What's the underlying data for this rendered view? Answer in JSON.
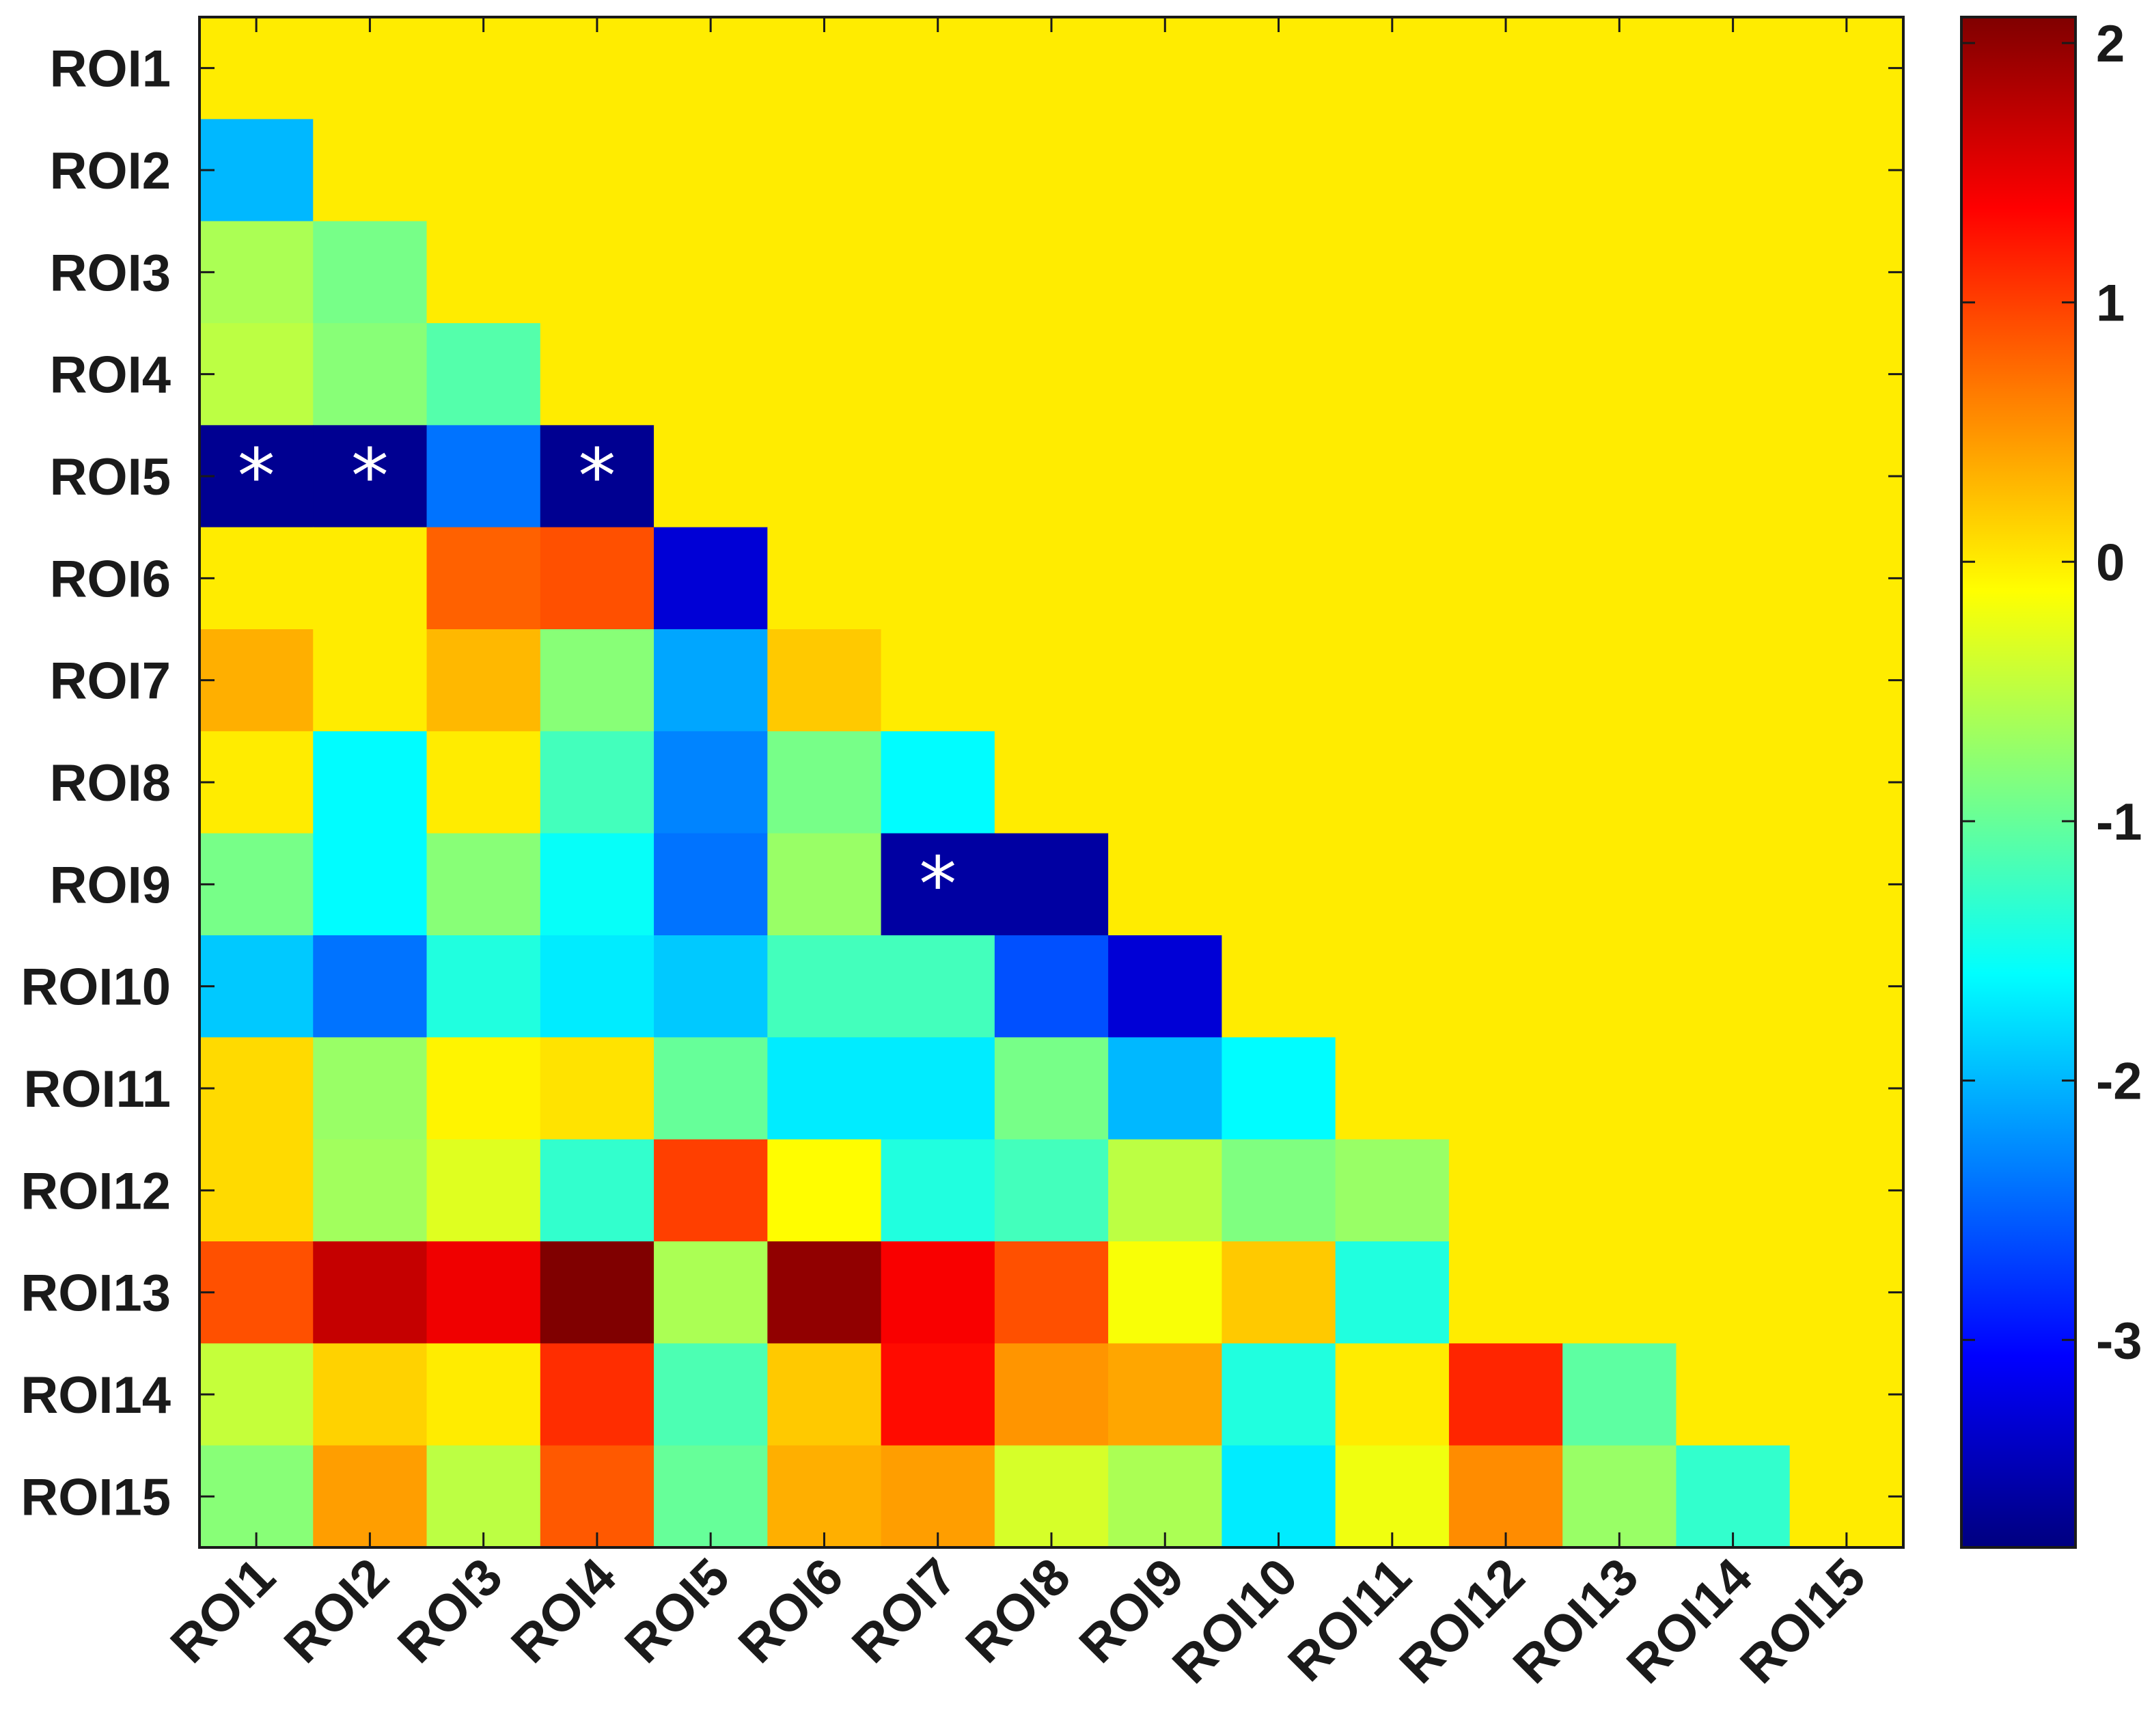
{
  "chart_data": {
    "type": "heatmap",
    "title": "",
    "xlabel": "",
    "ylabel": "",
    "x_categories": [
      "ROI1",
      "ROI2",
      "ROI3",
      "ROI4",
      "ROI5",
      "ROI6",
      "ROI7",
      "ROI8",
      "ROI9",
      "ROI10",
      "ROI11",
      "ROI12",
      "ROI13",
      "ROI14",
      "ROI15"
    ],
    "y_categories": [
      "ROI1",
      "ROI2",
      "ROI3",
      "ROI4",
      "ROI5",
      "ROI6",
      "ROI7",
      "ROI8",
      "ROI9",
      "ROI10",
      "ROI11",
      "ROI12",
      "ROI13",
      "ROI14",
      "ROI15"
    ],
    "values": [
      [
        0,
        0,
        0,
        0,
        0,
        0,
        0,
        0,
        0,
        0,
        0,
        0,
        0,
        0,
        0
      ],
      [
        -2.0,
        0,
        0,
        0,
        0,
        0,
        0,
        0,
        0,
        0,
        0,
        0,
        0,
        0,
        0
      ],
      [
        -0.6,
        -0.9,
        0,
        0,
        0,
        0,
        0,
        0,
        0,
        0,
        0,
        0,
        0,
        0,
        0
      ],
      [
        -0.5,
        -0.8,
        -1.1,
        0,
        0,
        0,
        0,
        0,
        0,
        0,
        0,
        0,
        0,
        0,
        0
      ],
      [
        -3.7,
        -3.7,
        -2.4,
        -3.7,
        0,
        0,
        0,
        0,
        0,
        0,
        0,
        0,
        0,
        0,
        0
      ],
      [
        0,
        0,
        0.8,
        0.9,
        -3.3,
        0,
        0,
        0,
        0,
        0,
        0,
        0,
        0,
        0,
        0
      ],
      [
        0.35,
        0,
        0.3,
        -0.8,
        -2.1,
        0.2,
        0,
        0,
        0,
        0,
        0,
        0,
        0,
        0,
        0
      ],
      [
        0,
        -1.6,
        0,
        -1.2,
        -2.3,
        -0.9,
        -1.6,
        0,
        0,
        0,
        0,
        0,
        0,
        0,
        0
      ],
      [
        -0.9,
        -1.6,
        -0.8,
        -1.55,
        -2.4,
        -0.7,
        -3.6,
        -3.6,
        0,
        0,
        0,
        0,
        0,
        0,
        0
      ],
      [
        -1.9,
        -2.4,
        -1.4,
        -1.7,
        -1.9,
        -1.2,
        -1.2,
        -2.6,
        -3.3,
        0,
        0,
        0,
        0,
        0,
        0
      ],
      [
        0.1,
        -0.7,
        -0.05,
        0.05,
        -1.0,
        -1.7,
        -1.7,
        -0.9,
        -2.0,
        -1.6,
        0,
        0,
        0,
        0,
        0
      ],
      [
        0.1,
        -0.65,
        -0.3,
        -1.3,
        1.0,
        -0.1,
        -1.4,
        -1.2,
        -0.5,
        -0.85,
        -0.7,
        0,
        0,
        0,
        0
      ],
      [
        0.9,
        1.7,
        1.45,
        2.1,
        -0.6,
        2.0,
        1.4,
        0.9,
        -0.15,
        0.2,
        -1.4,
        0,
        0,
        0,
        0
      ],
      [
        -0.45,
        0.15,
        0,
        1.1,
        -1.15,
        0.2,
        1.3,
        0.5,
        0.4,
        -1.4,
        0,
        1.15,
        -1.05,
        0,
        0
      ],
      [
        -0.8,
        0.45,
        -0.5,
        0.85,
        -1.0,
        0.35,
        0.45,
        -0.35,
        -0.6,
        -1.7,
        -0.2,
        0.55,
        -0.7,
        -1.3,
        0
      ]
    ],
    "significant_marker": "*",
    "significant_cells": [
      [
        4,
        0
      ],
      [
        4,
        1
      ],
      [
        4,
        3
      ],
      [
        8,
        6
      ]
    ],
    "colorbar": {
      "colormap": "jet",
      "range": [
        -3.8,
        2.1
      ],
      "ticks": [
        -3,
        -2,
        -1,
        0,
        1,
        2
      ],
      "tick_labels": [
        "-3",
        "-2",
        "-1",
        "0",
        "1",
        "2"
      ]
    },
    "x_tick_rotation": "45",
    "grid": false,
    "legend": "colorbar right"
  }
}
